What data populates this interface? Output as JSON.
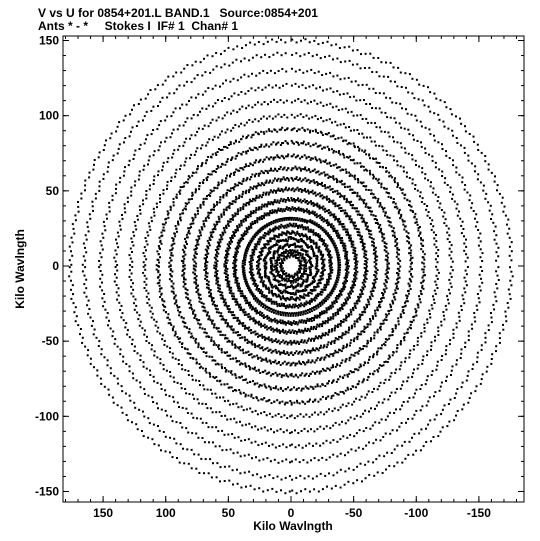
{
  "header": {
    "line1": "V vs U for 0854+201.L BAND.1   Source:0854+201",
    "line2": "Ants * - *     Stokes I  IF# 1  Chan# 1"
  },
  "chart_data": {
    "type": "scatter",
    "title": "V vs U for 0854+201.L BAND.1   Source:0854+201",
    "subtitle": "Ants * - *     Stokes I  IF# 1  Chan# 1",
    "xlabel": "Kilo Wavlngth",
    "ylabel": "Kilo Wavlngth",
    "xlim": [
      182,
      -186
    ],
    "ylim": [
      -157,
      153
    ],
    "x_reversed": true,
    "xticks": [
      150,
      100,
      50,
      0,
      -50,
      -100,
      -150
    ],
    "xtick_labels": [
      "150",
      "100",
      "50",
      "0",
      "-50",
      "-100",
      "-150"
    ],
    "yticks": [
      150,
      100,
      50,
      0,
      -50,
      -100,
      -150
    ],
    "ytick_labels": [
      "150",
      "100",
      "50",
      "0",
      "-50",
      "-100",
      "-150"
    ],
    "grid": false,
    "marker_color": "#000000",
    "series": [
      {
        "points_description": "uv-coverage tracks: elliptical arcs symmetric about origin forming a four-armed X pattern, extent roughly ±175 in U and ±150 in V",
        "arcs": [
          {
            "a": 8,
            "b": 7
          },
          {
            "a": 12,
            "b": 10
          },
          {
            "a": 16,
            "b": 14
          },
          {
            "a": 21,
            "b": 18
          },
          {
            "a": 26,
            "b": 22
          },
          {
            "a": 32,
            "b": 27
          },
          {
            "a": 38,
            "b": 32
          },
          {
            "a": 45,
            "b": 38
          },
          {
            "a": 52,
            "b": 44
          },
          {
            "a": 60,
            "b": 51
          },
          {
            "a": 68,
            "b": 58
          },
          {
            "a": 77,
            "b": 65
          },
          {
            "a": 86,
            "b": 73
          },
          {
            "a": 96,
            "b": 82
          },
          {
            "a": 106,
            "b": 91
          },
          {
            "a": 117,
            "b": 100
          },
          {
            "a": 128,
            "b": 110
          },
          {
            "a": 140,
            "b": 120
          },
          {
            "a": 152,
            "b": 130
          },
          {
            "a": 165,
            "b": 141
          },
          {
            "a": 176,
            "b": 150
          }
        ]
      }
    ]
  }
}
